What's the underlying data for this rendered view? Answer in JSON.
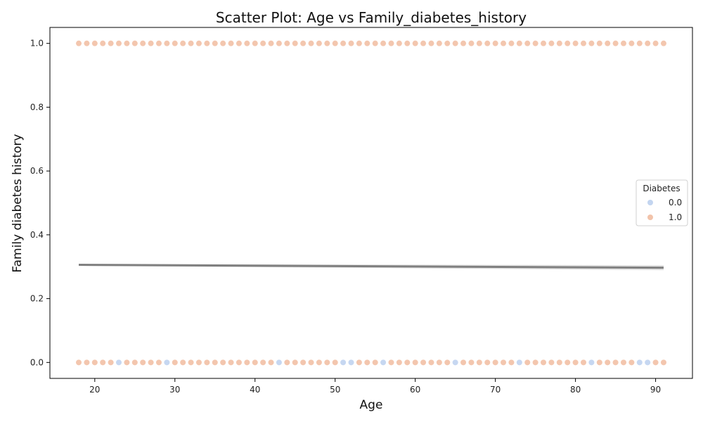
{
  "chart_data": {
    "type": "scatter",
    "title": "Scatter Plot: Age vs Family_diabetes_history",
    "xlabel": "Age",
    "ylabel": "Family diabetes history",
    "xlim": [
      14.4,
      94.6
    ],
    "ylim": [
      -0.05,
      1.05
    ],
    "xticks": [
      20,
      30,
      40,
      50,
      60,
      70,
      80,
      90
    ],
    "yticks": [
      0.0,
      0.2,
      0.4,
      0.6,
      0.8,
      1.0
    ],
    "xtick_labels": [
      "20",
      "30",
      "40",
      "50",
      "60",
      "70",
      "80",
      "90"
    ],
    "ytick_labels": [
      "0.0",
      "0.2",
      "0.4",
      "0.6",
      "0.8",
      "1.0"
    ],
    "grid": false,
    "legend": {
      "title": "Diabetes",
      "placement": "center-right",
      "entries": [
        {
          "label": "0.0",
          "color": "#c3d5f0"
        },
        {
          "label": "1.0",
          "color": "#f2c3aa"
        }
      ]
    },
    "series": [
      {
        "name": "0.0",
        "color": "#c3d5f0",
        "points": [
          [
            23,
            0
          ],
          [
            29,
            0
          ],
          [
            43,
            0
          ],
          [
            51,
            0
          ],
          [
            52,
            0
          ],
          [
            56,
            0
          ],
          [
            65,
            0
          ],
          [
            73,
            0
          ],
          [
            82,
            0
          ],
          [
            88,
            0
          ],
          [
            89,
            0
          ]
        ]
      },
      {
        "name": "1.0",
        "color": "#f2c3aa",
        "x_range_y1": [
          18,
          91
        ],
        "x_range_y0": [
          18,
          91
        ]
      }
    ],
    "trendline": {
      "color": "#808080",
      "x": [
        18,
        91
      ],
      "y": [
        0.306,
        0.297
      ]
    }
  }
}
